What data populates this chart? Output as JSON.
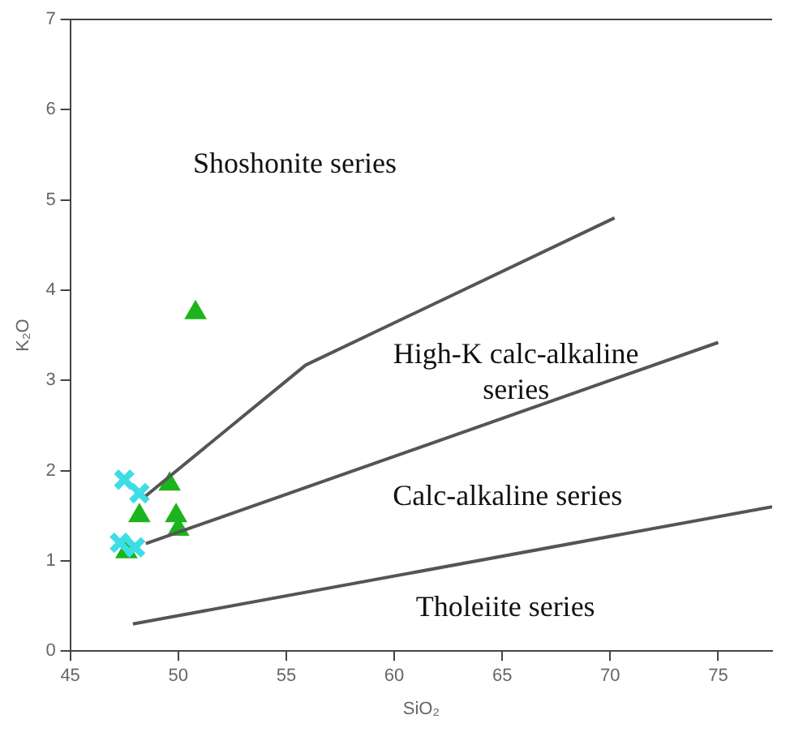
{
  "chart_data": {
    "type": "scatter",
    "xlabel": "SiO₂",
    "ylabel": "K₂O",
    "xlim": [
      45,
      77.5
    ],
    "ylim": [
      0,
      7
    ],
    "xticks": [
      45,
      50,
      55,
      60,
      65,
      70,
      75
    ],
    "yticks": [
      0,
      1,
      2,
      3,
      4,
      5,
      6,
      7
    ],
    "grid": false,
    "legend": false,
    "series": [
      {
        "type": "line",
        "color": "#555555",
        "marker": "none",
        "x": [
          48.5,
          55.9,
          70.2
        ],
        "values": [
          1.72,
          3.17,
          4.8
        ]
      },
      {
        "type": "line",
        "color": "#555555",
        "marker": "none",
        "x": [
          48.5,
          75
        ],
        "values": [
          1.19,
          3.42
        ]
      },
      {
        "type": "line",
        "color": "#555555",
        "marker": "none",
        "x": [
          47.9,
          77.5
        ],
        "values": [
          0.3,
          1.6
        ]
      },
      {
        "type": "scatter",
        "color": "#3ddde6",
        "marker": "cross",
        "x": [
          47.5,
          48.2,
          47.3,
          48
        ],
        "values": [
          1.9,
          1.75,
          1.2,
          1.15
        ]
      },
      {
        "type": "scatter",
        "color": "#1cb41c",
        "marker": "triangle",
        "x": [
          50.8,
          49.6,
          48.2,
          49.9,
          50,
          47.6
        ],
        "values": [
          3.75,
          1.85,
          1.5,
          1.5,
          1.35,
          1.1
        ]
      }
    ],
    "annotations": [
      "Shoshonite series",
      "High-K calc-alkaline series",
      "Calc-alkaline series",
      "Tholeiite series"
    ]
  }
}
